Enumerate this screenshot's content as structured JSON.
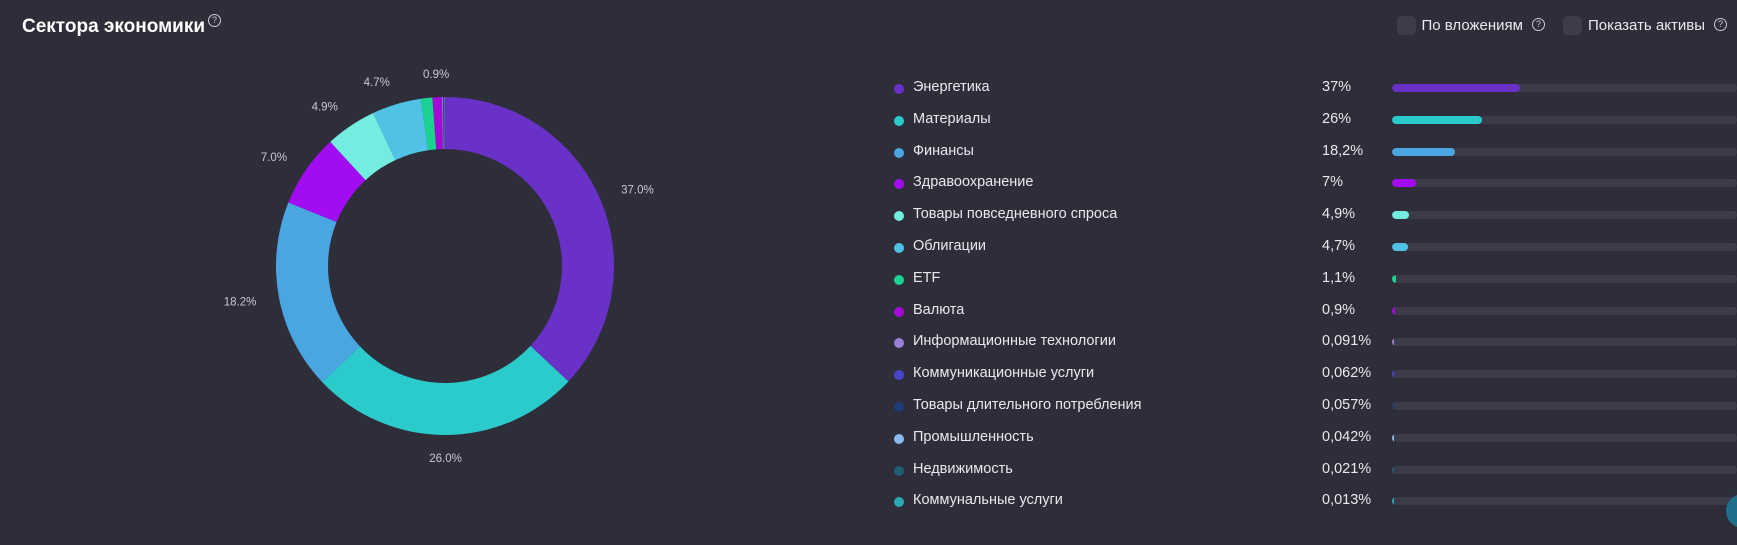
{
  "header": {
    "title": "Сектора экономики",
    "title_help": "?",
    "toggle_investments": "По вложениям",
    "toggle_investments_help": "?",
    "toggle_assets": "Показать активы",
    "toggle_assets_help": "?"
  },
  "chart_data": {
    "type": "pie",
    "style": "donut",
    "start_angle": "top",
    "slices": [
      {
        "name": "Энергетика",
        "value": 37.0,
        "label": "37.0%",
        "color": "#6a31c9"
      },
      {
        "name": "Материалы",
        "value": 26.0,
        "label": "26.0%",
        "color": "#2ccbcb"
      },
      {
        "name": "Финансы",
        "value": 18.2,
        "label": "18.2%",
        "color": "#4aa6e0"
      },
      {
        "name": "Здравоохранение",
        "value": 7.0,
        "label": "7.0%",
        "color": "#a20cf2"
      },
      {
        "name": "Товары повседневного спроса",
        "value": 4.9,
        "label": "4.9%",
        "color": "#72ede0"
      },
      {
        "name": "Облигации",
        "value": 4.7,
        "label": "4.7%",
        "color": "#4fc2e6"
      },
      {
        "name": "ETF",
        "value": 1.1,
        "label": "",
        "color": "#19d38f"
      },
      {
        "name": "Валюта",
        "value": 0.9,
        "label": "0.9%",
        "color": "#a30ad6"
      },
      {
        "name": "Информационные технологии",
        "value": 0.091,
        "label": "",
        "color": "#9a7fd6"
      },
      {
        "name": "Коммуникационные услуги",
        "value": 0.062,
        "label": "",
        "color": "#4646c8"
      },
      {
        "name": "Товары длительного потребления",
        "value": 0.057,
        "label": "",
        "color": "#1e3a78"
      },
      {
        "name": "Промышленность",
        "value": 0.042,
        "label": "",
        "color": "#8ab8f0"
      },
      {
        "name": "Недвижимость",
        "value": 0.021,
        "label": "",
        "color": "#1f5f73"
      },
      {
        "name": "Коммунальные услуги",
        "value": 0.013,
        "label": "",
        "color": "#2ba8b4"
      }
    ]
  },
  "legend": [
    {
      "name": "Энергетика",
      "value": "37%",
      "share": 0.37
    },
    {
      "name": "Материалы",
      "value": "26%",
      "share": 0.26
    },
    {
      "name": "Финансы",
      "value": "18,2%",
      "share": 0.182
    },
    {
      "name": "Здравоохранение",
      "value": "7%",
      "share": 0.07
    },
    {
      "name": "Товары повседневного спроса",
      "value": "4,9%",
      "share": 0.049
    },
    {
      "name": "Облигации",
      "value": "4,7%",
      "share": 0.047
    },
    {
      "name": "ETF",
      "value": "1,1%",
      "share": 0.011
    },
    {
      "name": "Валюта",
      "value": "0,9%",
      "share": 0.009
    },
    {
      "name": "Информационные технологии",
      "value": "0,091%",
      "share": 0.00091
    },
    {
      "name": "Коммуникационные услуги",
      "value": "0,062%",
      "share": 0.00062
    },
    {
      "name": "Товары длительного потребления",
      "value": "0,057%",
      "share": 0.00057
    },
    {
      "name": "Промышленность",
      "value": "0,042%",
      "share": 0.00042
    },
    {
      "name": "Недвижимость",
      "value": "0,021%",
      "share": 0.00021
    },
    {
      "name": "Коммунальные услуги",
      "value": "0,013%",
      "share": 0.00013
    }
  ]
}
